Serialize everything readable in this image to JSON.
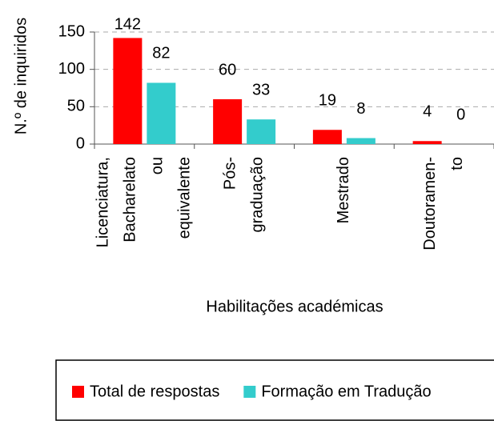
{
  "chart_data": {
    "type": "bar",
    "x_label": "Habilitações académicas",
    "y_label": "N.º de inquiridos",
    "categories": [
      [
        "Licenciatura,",
        "Bacharelato",
        "ou",
        "equivalente"
      ],
      [
        "Pós-",
        "graduação"
      ],
      [
        "Mestrado"
      ],
      [
        "Doutoramen-",
        "to"
      ]
    ],
    "series": [
      {
        "name": "Total de respostas",
        "color": "#ff0000",
        "values": [
          142,
          60,
          19,
          4
        ]
      },
      {
        "name": "Formação em Tradução",
        "color": "#33cccc",
        "values": [
          82,
          33,
          8,
          0
        ]
      }
    ],
    "ylim": [
      0,
      150
    ],
    "yticks": [
      0,
      50,
      100,
      150
    ],
    "grid": true,
    "legend": "bottom"
  }
}
